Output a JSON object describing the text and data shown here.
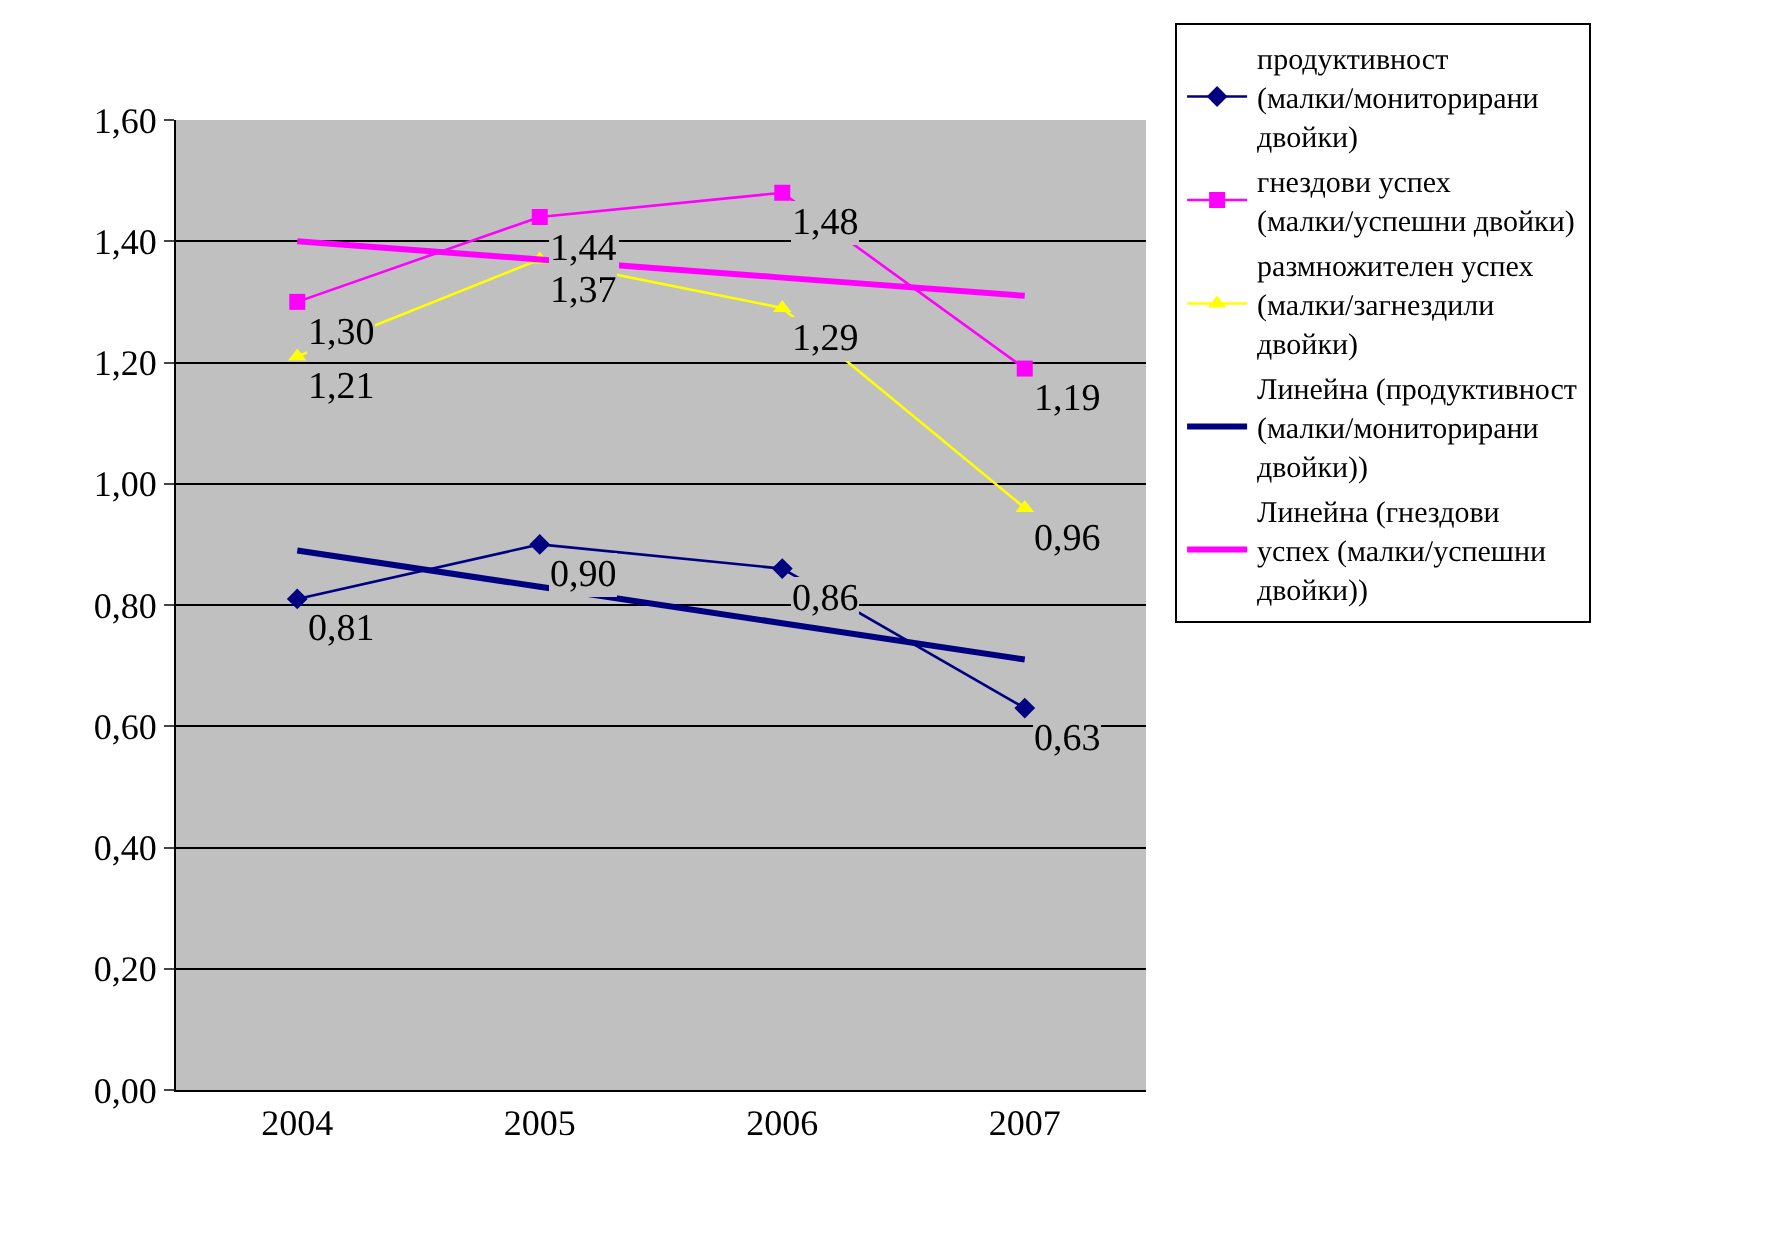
{
  "chart_data": {
    "type": "line",
    "categories": [
      "2004",
      "2005",
      "2006",
      "2007"
    ],
    "ylim": [
      0,
      1.6
    ],
    "yticks": [
      {
        "value": 0,
        "label": "0,00"
      },
      {
        "value": 0.2,
        "label": "0,20"
      },
      {
        "value": 0.4,
        "label": "0,40"
      },
      {
        "value": 0.6,
        "label": "0,60"
      },
      {
        "value": 0.8,
        "label": "0,80"
      },
      {
        "value": 1.0,
        "label": "1,00"
      },
      {
        "value": 1.2,
        "label": "1,20"
      },
      {
        "value": 1.4,
        "label": "1,40"
      },
      {
        "value": 1.6,
        "label": "1,60"
      }
    ],
    "grid": "y",
    "legend": "right",
    "series": [
      {
        "name": "продуктивност (малки/мониторирани двойки)",
        "color": "#000080",
        "marker": "diamond",
        "values": [
          0.81,
          0.9,
          0.86,
          0.63
        ],
        "value_labels": [
          "0,81",
          "0,90",
          "0,86",
          "0,63"
        ]
      },
      {
        "name": "гнездови успех (малки/успешни двойки)",
        "color": "#ff00ff",
        "marker": "square",
        "values": [
          1.3,
          1.44,
          1.48,
          1.19
        ],
        "value_labels": [
          "1,30",
          "1,44",
          "1,48",
          "1,19"
        ]
      },
      {
        "name": "размножителен успех (малки/загнездили двойки)",
        "color": "#ffff00",
        "marker": "triangle",
        "values": [
          1.21,
          1.37,
          1.29,
          0.96
        ],
        "value_labels": [
          "1,21",
          "1,37",
          "1,29",
          "0,96"
        ]
      },
      {
        "name": "Линейна (продуктивност (малки/мониторирани двойки))",
        "color": "#000080",
        "marker": "none",
        "values": [
          0.89,
          0.83,
          0.77,
          0.71
        ]
      },
      {
        "name": "Линейна (гнездови успех (малки/успешни двойки))",
        "color": "#ff00ff",
        "marker": "none",
        "values": [
          1.4,
          1.37,
          1.34,
          1.31
        ]
      }
    ]
  }
}
